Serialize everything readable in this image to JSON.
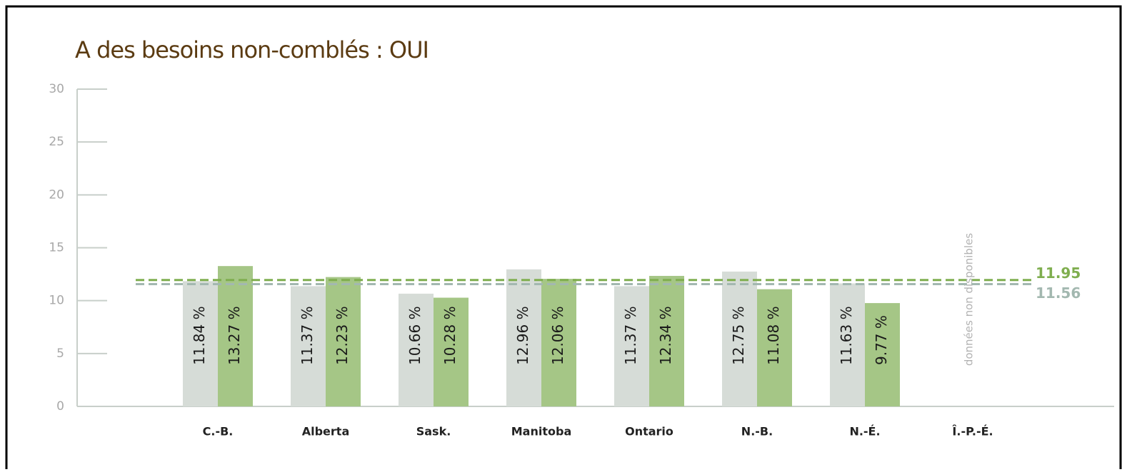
{
  "chart_data": {
    "type": "bar",
    "title": "A des besoins non-comblés : OUI",
    "categories": [
      "C.-B.",
      "Alberta",
      "Sask.",
      "Manitoba",
      "Ontario",
      "N.-B.",
      "N.-É.",
      "Î.-P.-É."
    ],
    "series": [
      {
        "color": "#d6dcd7",
        "values": [
          11.84,
          11.37,
          10.66,
          12.96,
          11.37,
          12.75,
          11.63,
          null
        ],
        "value_labels": [
          "11.84 %",
          "11.37 %",
          "10.66 %",
          "12.96 %",
          "11.37 %",
          "12.75 %",
          "11.63 %",
          null
        ]
      },
      {
        "color": "#a5c686",
        "values": [
          13.27,
          12.23,
          10.28,
          12.06,
          12.34,
          11.08,
          9.77,
          null
        ],
        "value_labels": [
          "13.27 %",
          "12.23 %",
          "10.28 %",
          "12.06 %",
          "12.34 %",
          "11.08 %",
          "9.77 %",
          null
        ]
      }
    ],
    "reference_lines": [
      {
        "value": 11.95,
        "color": "#7fae4f"
      },
      {
        "value": 11.56,
        "color": "#a3b8b0"
      }
    ],
    "annotation": "données non disponibles",
    "ylim": [
      0,
      30
    ],
    "yticks": [
      0,
      5,
      10,
      15,
      20,
      25,
      30
    ]
  }
}
